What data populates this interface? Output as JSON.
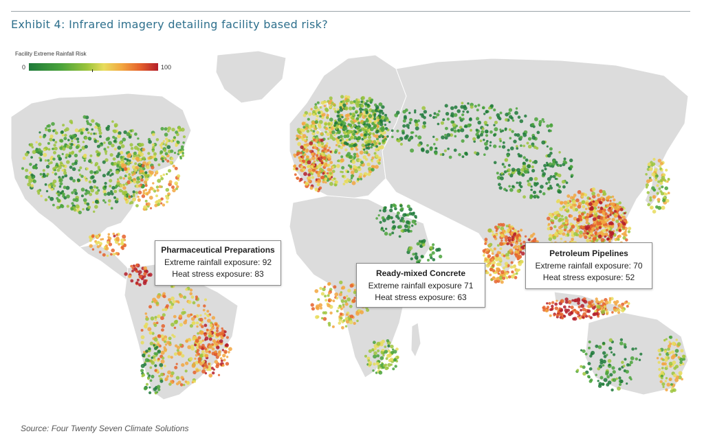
{
  "header": {
    "title": "Exhibit 4: Infrared imagery detailing facility based risk?"
  },
  "legend": {
    "title": "Facility Extreme Rainfall Risk",
    "min": "0",
    "max": "100",
    "colors": [
      "#1e7a3a",
      "#4aa33b",
      "#9cc43c",
      "#e8dc5c",
      "#f2a640",
      "#e5622c",
      "#b41e2a"
    ]
  },
  "callouts": [
    {
      "title": "Pharmaceutical Preparations",
      "line1": "Extreme rainfall exposure: 92",
      "line2": "Heat stress exposure: 83"
    },
    {
      "title": "Ready-mixed Concrete",
      "line1": "Extreme rainfall exposure 71",
      "line2": "Heat stress exposure: 63"
    },
    {
      "title": "Petroleum Pipelines",
      "line1": "Extreme rainfall exposure: 70",
      "line2": "Heat stress exposure: 52"
    }
  ],
  "source": "Source:  Four Twenty Seven Climate Solutions"
}
